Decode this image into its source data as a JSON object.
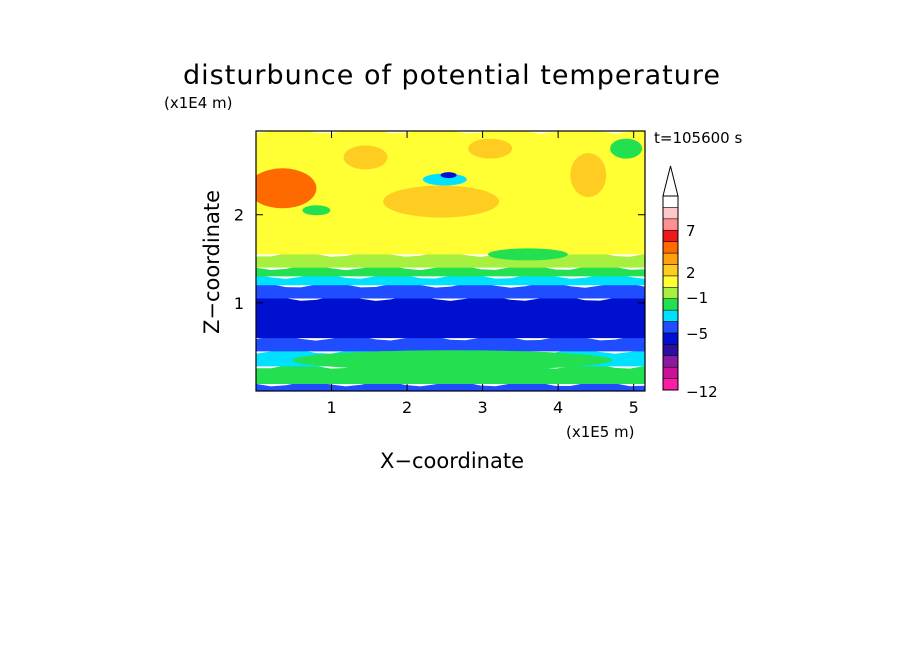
{
  "chart_data": {
    "type": "heatmap",
    "title": "disturbunce of potential temperature",
    "time_label": "t=105600 s",
    "xlabel": "X−coordinate",
    "ylabel": "Z−coordinate",
    "x_unit": "(x1E5 m)",
    "y_unit": "(x1E4 m)",
    "x_ticks": [
      1,
      2,
      3,
      4,
      5
    ],
    "y_ticks": [
      1,
      2
    ],
    "xlim": [
      0,
      5.15
    ],
    "ylim": [
      0,
      2.95
    ],
    "grid": false,
    "colorbar": {
      "position": "right",
      "extend": "top",
      "tick_labels": [
        "7",
        "2",
        "−1",
        "−5",
        "−12"
      ],
      "level_colors": [
        "#ff1aa8",
        "#cc1199",
        "#8a1aa0",
        "#2b0fa0",
        "#0010d0",
        "#1f4dff",
        "#00e0ff",
        "#22e050",
        "#a8f040",
        "#ffff33",
        "#ffcc22",
        "#ffa010",
        "#ff6a00",
        "#ee1a1a",
        "#ff9090",
        "#ffc8c8",
        "#ffffff"
      ]
    },
    "layers": [
      {
        "z_range": [
          0.0,
          0.08
        ],
        "value": -5,
        "color": "#1f4dff"
      },
      {
        "z_range": [
          0.08,
          0.28
        ],
        "value": -1,
        "color": "#22e050"
      },
      {
        "z_range": [
          0.28,
          0.45
        ],
        "value": -1,
        "color": "#00e0ff"
      },
      {
        "z_range": [
          0.45,
          0.6
        ],
        "value": -5,
        "color": "#1f4dff"
      },
      {
        "z_range": [
          0.6,
          1.05
        ],
        "value": -5,
        "color": "#0010d0"
      },
      {
        "z_range": [
          1.05,
          1.2
        ],
        "value": -5,
        "color": "#1f4dff"
      },
      {
        "z_range": [
          1.2,
          1.3
        ],
        "value": -1,
        "color": "#00e0ff"
      },
      {
        "z_range": [
          1.3,
          1.4
        ],
        "value": -1,
        "color": "#22e050"
      },
      {
        "z_range": [
          1.4,
          1.55
        ],
        "value": 0,
        "color": "#a8f040"
      },
      {
        "z_range": [
          1.55,
          2.95
        ],
        "value": 1,
        "color": "#ffff33"
      }
    ],
    "features": [
      {
        "x": 0.35,
        "z": 2.3,
        "value": 3,
        "color": "#ff6a00"
      },
      {
        "x": 2.45,
        "z": 2.15,
        "value": 2,
        "color": "#ffcc22"
      },
      {
        "x": 2.5,
        "z": 2.4,
        "value": -1,
        "color": "#00e0ff"
      },
      {
        "x": 2.55,
        "z": 2.45,
        "value": -5,
        "color": "#0010d0"
      },
      {
        "x": 1.45,
        "z": 2.65,
        "value": 2,
        "color": "#ffcc22"
      },
      {
        "x": 3.1,
        "z": 2.75,
        "value": 2,
        "color": "#ffcc22"
      },
      {
        "x": 4.4,
        "z": 2.45,
        "value": 2,
        "color": "#ffcc22"
      },
      {
        "x": 0.8,
        "z": 2.05,
        "value": -1,
        "color": "#22e050"
      },
      {
        "x": 4.9,
        "z": 2.75,
        "value": -1,
        "color": "#22e050"
      },
      {
        "x": 3.6,
        "z": 1.55,
        "value": -1,
        "color": "#22e050"
      },
      {
        "x": 2.6,
        "z": 0.35,
        "value": 0,
        "color": "#22e050"
      }
    ]
  }
}
